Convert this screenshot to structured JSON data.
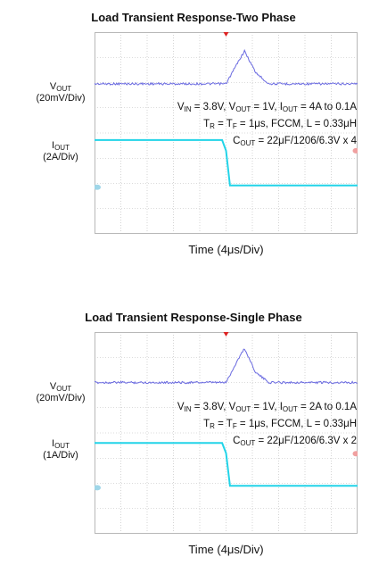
{
  "chart_data": [
    {
      "type": "line",
      "title": "Load Transient Response-Two Phase",
      "xlabel": "Time (4μs/Div)",
      "vout_label": {
        "sym": "V",
        "sub": "OUT",
        "scale": "(20mV/Div)"
      },
      "iout_label": {
        "sym": "I",
        "sub": "OUT",
        "scale": "(2A/Div)"
      },
      "conditions": {
        "line1": {
          "a": "V",
          "a_sub": "IN",
          "b": " = 3.8V, V",
          "b_sub": "OUT",
          "c": " = 1V, I",
          "c_sub": "OUT",
          "d": " = 4A to 0.1A"
        },
        "line2": {
          "a": "T",
          "a_sub": "R",
          "b": " = T",
          "b_sub": "F",
          "c": " = 1μs, FCCM, L = 0.33μH"
        },
        "line3": {
          "a": "C",
          "a_sub": "OUT",
          "b": " = 22μF/1206/6.3V x 4"
        }
      },
      "divisions": {
        "x": 10,
        "y": 8
      },
      "xlim": [
        0,
        40
      ],
      "series": [
        {
          "name": "VOUT",
          "x": [
            0,
            20,
            22,
            22.8,
            24.5,
            26.5,
            40
          ],
          "y": [
            5.95,
            5.95,
            6.9,
            7.25,
            6.4,
            5.95,
            5.95
          ],
          "color": "#6a6ae0"
        },
        {
          "name": "IOUT",
          "x": [
            0,
            19.4,
            20,
            20.6,
            40
          ],
          "y": [
            3.72,
            3.72,
            3.3,
            1.92,
            1.92
          ],
          "color": "#22d4e8"
        }
      ],
      "trigger_x": 20,
      "colors": {
        "vout": "#6a6ae0",
        "iout": "#22d4e8",
        "trigger": "#dd2222",
        "grid": "#b8b8b8",
        "marker_left": "#9fd6e8",
        "marker_right": "#f0a0a0"
      }
    },
    {
      "type": "line",
      "title": "Load Transient Response-Single Phase",
      "xlabel": "Time (4μs/Div)",
      "vout_label": {
        "sym": "V",
        "sub": "OUT",
        "scale": "(20mV/Div)"
      },
      "iout_label": {
        "sym": "I",
        "sub": "OUT",
        "scale": "(1A/Div)"
      },
      "conditions": {
        "line1": {
          "a": "V",
          "a_sub": "IN",
          "b": " = 3.8V, V",
          "b_sub": "OUT",
          "c": " = 1V, I",
          "c_sub": "OUT",
          "d": " = 2A to 0.1A"
        },
        "line2": {
          "a": "T",
          "a_sub": "R",
          "b": " = T",
          "b_sub": "F",
          "c": " = 1μs, FCCM, L = 0.33μH"
        },
        "line3": {
          "a": "C",
          "a_sub": "OUT",
          "b": " = 22μF/1206/6.3V x 2"
        }
      },
      "divisions": {
        "x": 10,
        "y": 8
      },
      "xlim": [
        0,
        40
      ],
      "series": [
        {
          "name": "VOUT",
          "x": [
            0,
            20,
            22,
            22.8,
            24.5,
            26.5,
            40
          ],
          "y": [
            6.0,
            6.0,
            7.0,
            7.35,
            6.4,
            6.0,
            6.0
          ],
          "color": "#6a6ae0"
        },
        {
          "name": "IOUT",
          "x": [
            0,
            19.4,
            20,
            20.6,
            40
          ],
          "y": [
            3.6,
            3.6,
            3.2,
            1.9,
            1.9
          ],
          "color": "#22d4e8"
        }
      ],
      "trigger_x": 20,
      "colors": {
        "vout": "#6a6ae0",
        "iout": "#22d4e8",
        "trigger": "#dd2222",
        "grid": "#b8b8b8",
        "marker_left": "#9fd6e8",
        "marker_right": "#f0a0a0"
      }
    }
  ]
}
